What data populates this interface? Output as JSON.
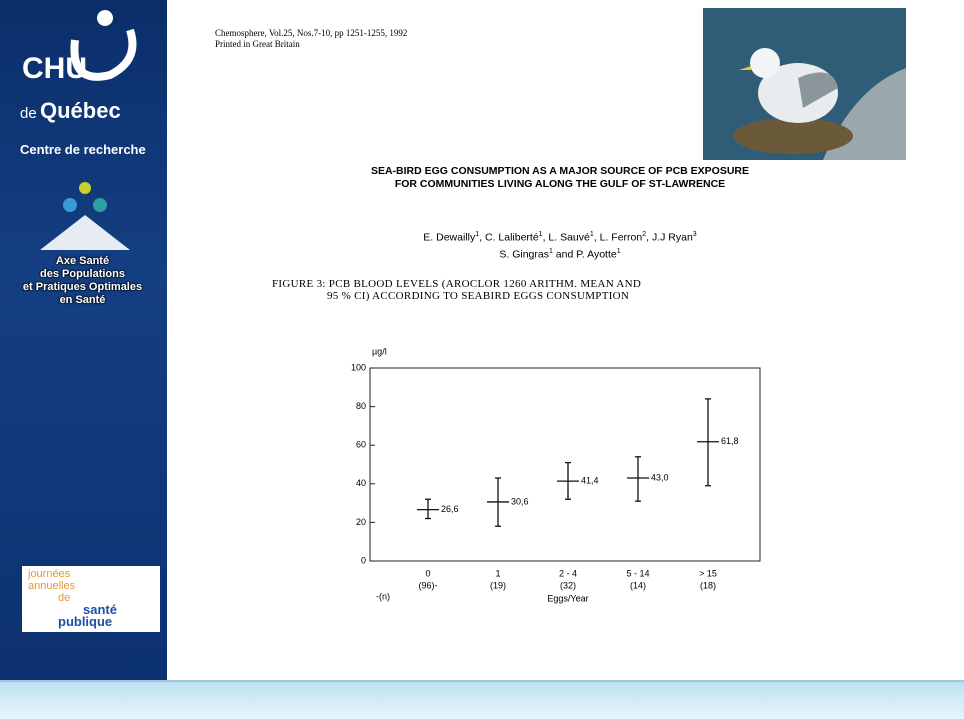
{
  "sidebar": {
    "logo_main": "CHU",
    "logo_de": "de",
    "logo_city": "Québec",
    "centre": "Centre de recherche",
    "axe": [
      "Axe Santé",
      "des Populations",
      "et Pratiques Optimales",
      "en Santé"
    ],
    "jasp": [
      "journées",
      "annuelles",
      "de",
      "santé",
      "publique"
    ]
  },
  "citation": [
    "Chemosphere, Vol.25, Nos.7-10, pp 1251-1255, 1992",
    "Printed in Great Britain"
  ],
  "paper_title": [
    "SEA-BIRD EGG CONSUMPTION AS A MAJOR SOURCE OF PCB EXPOSURE",
    "FOR COMMUNITIES LIVING ALONG THE GULF OF ST-LAWRENCE"
  ],
  "authors": [
    [
      {
        "name": "E. Dewailly",
        "sup": "1"
      },
      {
        "name": ", C. Laliberté",
        "sup": "1"
      },
      {
        "name": ", L. Sauvé",
        "sup": "1"
      },
      {
        "name": ", L. Ferron",
        "sup": "2"
      },
      {
        "name": ", J.J Ryan",
        "sup": "3"
      }
    ],
    [
      {
        "name": "S. Gingras",
        "sup": "1"
      },
      {
        "name": " and P. Ayotte",
        "sup": "1"
      }
    ]
  ],
  "figure_caption": [
    "FIGURE 3:  PCB BLOOD LEVELS (AROCLOR 1260 ARITHM. MEAN AND",
    "95 % CI) ACCORDING TO SEABIRD EGGS CONSUMPTION"
  ],
  "chart_data": {
    "type": "errorbar",
    "y_label": "µg/l",
    "x_label": "Eggs/Year",
    "n_axis_label": "-(n)",
    "categories": [
      "0",
      "1",
      "2 - 4",
      "5 - 14",
      "> 15"
    ],
    "n_labels": [
      "(96)-",
      "(19)",
      "(32)",
      "(14)",
      "(18)"
    ],
    "values": [
      26.6,
      30.6,
      41.4,
      43.0,
      61.8
    ],
    "value_labels": [
      "26,6",
      "30,6",
      "41,4",
      "43,0",
      "61,8"
    ],
    "ci_low": [
      22,
      18,
      32,
      31,
      39
    ],
    "ci_high": [
      32,
      43,
      51,
      54,
      84
    ],
    "color": "#111111",
    "ylim": [
      0,
      100
    ],
    "yticks": [
      0,
      20,
      40,
      60,
      80,
      100
    ]
  }
}
